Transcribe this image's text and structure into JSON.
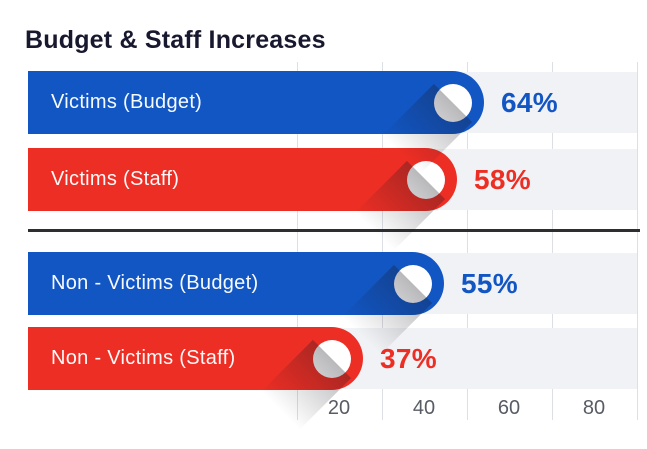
{
  "title": "Budget & Staff Increases",
  "chart_data": {
    "type": "bar",
    "orientation": "horizontal",
    "title": "Budget & Staff Increases",
    "categories": [
      "Victims (Budget)",
      "Victims (Staff)",
      "Non - Victims (Budget)",
      "Non - Victims (Staff)"
    ],
    "values": [
      64,
      58,
      55,
      37
    ],
    "value_labels": [
      "64%",
      "58%",
      "55%",
      "37%"
    ],
    "series_colors": [
      "#1256c4",
      "#ed2e24",
      "#1256c4",
      "#ed2e24"
    ],
    "x_ticks": [
      "20",
      "40",
      "60",
      "80"
    ],
    "xlim": [
      0,
      100
    ],
    "grid": true,
    "legend": "none",
    "group_divider_after_index": 1
  },
  "colors": {
    "blue": "#1256c4",
    "red": "#ed2e24",
    "track": "#f1f2f5",
    "gridline": "#dcdfe4",
    "title_text": "#18182f",
    "tick_text": "#585c64",
    "divider": "#2e2e30",
    "knob": "#ffffff",
    "background": "#ffffff"
  }
}
